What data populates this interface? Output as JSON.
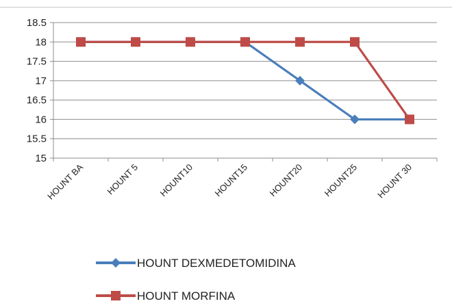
{
  "chart_data": {
    "type": "line",
    "title": "",
    "xlabel": "",
    "ylabel": "",
    "categories": [
      "HOUNT BA",
      "HOUNT 5",
      "HOUNT10",
      "HOUNT15",
      "HOUNT20",
      "HOUNT25",
      "HOUNT 30"
    ],
    "ylim": [
      15,
      18.5
    ],
    "yticks": [
      15,
      15.5,
      16,
      16.5,
      17,
      17.5,
      18,
      18.5
    ],
    "grid": true,
    "legend_position": "bottom",
    "series": [
      {
        "name": "HOUNT DEXMEDETOMIDINA",
        "values": [
          18,
          18,
          18,
          18,
          17,
          16,
          16
        ],
        "color": "#4a7ebb",
        "marker": "diamond"
      },
      {
        "name": "HOUNT MORFINA",
        "values": [
          18,
          18,
          18,
          18,
          18,
          18,
          16
        ],
        "color": "#be4b48",
        "marker": "square"
      }
    ]
  }
}
